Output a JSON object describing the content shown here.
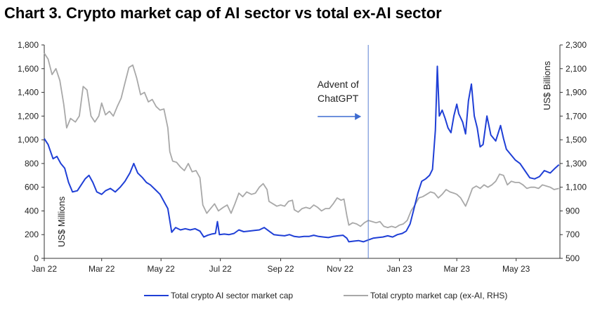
{
  "title": "Chart 3. Crypto market cap of AI sector vs total ex-AI sector",
  "chart_data": {
    "type": "line",
    "left_axis_label": "US$ Millions",
    "right_axis_label": "US$ Billions",
    "left_ylim": [
      0,
      1800
    ],
    "right_ylim": [
      500,
      2300
    ],
    "left_ticks": [
      "0",
      "200",
      "400",
      "600",
      "800",
      "1,000",
      "1,200",
      "1,400",
      "1,600",
      "1,800"
    ],
    "right_ticks": [
      "500",
      "700",
      "900",
      "1,100",
      "1,300",
      "1,500",
      "1,700",
      "1,900",
      "2,100",
      "2,300"
    ],
    "x_ticks": [
      "Jan 22",
      "Mar 22",
      "May 22",
      "Jul 22",
      "Sep 22",
      "Nov 22",
      "Jan 23",
      "Mar 23",
      "May 23"
    ],
    "x_tick_dates": [
      "2022-01-01",
      "2022-03-01",
      "2022-05-01",
      "2022-07-01",
      "2022-09-01",
      "2022-11-01",
      "2023-01-01",
      "2023-03-01",
      "2023-05-01"
    ],
    "x_range": [
      "2022-01-01",
      "2023-06-15"
    ],
    "annotation": {
      "lines": [
        "Advent of",
        "ChatGPT"
      ],
      "date": "2022-11-30"
    },
    "series": [
      {
        "name": "Total crypto AI sector market cap",
        "axis": "left",
        "color": "#1f3fd6",
        "points": [
          [
            "2022-01-01",
            1010
          ],
          [
            "2022-01-05",
            960
          ],
          [
            "2022-01-10",
            840
          ],
          [
            "2022-01-14",
            860
          ],
          [
            "2022-01-18",
            800
          ],
          [
            "2022-01-22",
            760
          ],
          [
            "2022-01-26",
            640
          ],
          [
            "2022-01-30",
            560
          ],
          [
            "2022-02-04",
            570
          ],
          [
            "2022-02-08",
            620
          ],
          [
            "2022-02-12",
            670
          ],
          [
            "2022-02-16",
            700
          ],
          [
            "2022-02-20",
            640
          ],
          [
            "2022-02-24",
            560
          ],
          [
            "2022-03-01",
            540
          ],
          [
            "2022-03-05",
            570
          ],
          [
            "2022-03-10",
            590
          ],
          [
            "2022-03-15",
            560
          ],
          [
            "2022-03-20",
            600
          ],
          [
            "2022-03-25",
            650
          ],
          [
            "2022-03-30",
            720
          ],
          [
            "2022-04-03",
            800
          ],
          [
            "2022-04-07",
            720
          ],
          [
            "2022-04-12",
            680
          ],
          [
            "2022-04-16",
            640
          ],
          [
            "2022-04-20",
            620
          ],
          [
            "2022-04-25",
            580
          ],
          [
            "2022-04-30",
            540
          ],
          [
            "2022-05-04",
            480
          ],
          [
            "2022-05-08",
            420
          ],
          [
            "2022-05-12",
            220
          ],
          [
            "2022-05-16",
            260
          ],
          [
            "2022-05-21",
            240
          ],
          [
            "2022-05-26",
            250
          ],
          [
            "2022-05-31",
            240
          ],
          [
            "2022-06-05",
            250
          ],
          [
            "2022-06-10",
            230
          ],
          [
            "2022-06-14",
            180
          ],
          [
            "2022-06-18",
            195
          ],
          [
            "2022-06-22",
            205
          ],
          [
            "2022-06-26",
            210
          ],
          [
            "2022-06-28",
            310
          ],
          [
            "2022-06-30",
            200
          ],
          [
            "2022-07-05",
            205
          ],
          [
            "2022-07-10",
            200
          ],
          [
            "2022-07-15",
            210
          ],
          [
            "2022-07-20",
            240
          ],
          [
            "2022-07-25",
            225
          ],
          [
            "2022-07-30",
            230
          ],
          [
            "2022-08-05",
            235
          ],
          [
            "2022-08-10",
            240
          ],
          [
            "2022-08-15",
            260
          ],
          [
            "2022-08-20",
            230
          ],
          [
            "2022-08-25",
            200
          ],
          [
            "2022-08-30",
            195
          ],
          [
            "2022-09-05",
            190
          ],
          [
            "2022-09-10",
            200
          ],
          [
            "2022-09-15",
            185
          ],
          [
            "2022-09-20",
            180
          ],
          [
            "2022-09-25",
            185
          ],
          [
            "2022-09-30",
            185
          ],
          [
            "2022-10-05",
            195
          ],
          [
            "2022-10-10",
            185
          ],
          [
            "2022-10-15",
            180
          ],
          [
            "2022-10-20",
            175
          ],
          [
            "2022-10-25",
            185
          ],
          [
            "2022-10-30",
            190
          ],
          [
            "2022-11-04",
            195
          ],
          [
            "2022-11-08",
            170
          ],
          [
            "2022-11-10",
            140
          ],
          [
            "2022-11-15",
            145
          ],
          [
            "2022-11-20",
            150
          ],
          [
            "2022-11-25",
            140
          ],
          [
            "2022-11-30",
            155
          ],
          [
            "2022-12-05",
            170
          ],
          [
            "2022-12-10",
            175
          ],
          [
            "2022-12-15",
            180
          ],
          [
            "2022-12-20",
            190
          ],
          [
            "2022-12-25",
            180
          ],
          [
            "2022-12-30",
            200
          ],
          [
            "2023-01-04",
            210
          ],
          [
            "2023-01-08",
            230
          ],
          [
            "2023-01-12",
            290
          ],
          [
            "2023-01-16",
            420
          ],
          [
            "2023-01-20",
            550
          ],
          [
            "2023-01-24",
            650
          ],
          [
            "2023-01-28",
            670
          ],
          [
            "2023-02-01",
            700
          ],
          [
            "2023-02-04",
            750
          ],
          [
            "2023-02-07",
            1080
          ],
          [
            "2023-02-09",
            1620
          ],
          [
            "2023-02-11",
            1200
          ],
          [
            "2023-02-14",
            1250
          ],
          [
            "2023-02-17",
            1180
          ],
          [
            "2023-02-20",
            1100
          ],
          [
            "2023-02-23",
            1060
          ],
          [
            "2023-02-26",
            1200
          ],
          [
            "2023-03-01",
            1300
          ],
          [
            "2023-03-03",
            1220
          ],
          [
            "2023-03-07",
            1150
          ],
          [
            "2023-03-10",
            1050
          ],
          [
            "2023-03-13",
            1330
          ],
          [
            "2023-03-16",
            1470
          ],
          [
            "2023-03-19",
            1200
          ],
          [
            "2023-03-22",
            1100
          ],
          [
            "2023-03-25",
            940
          ],
          [
            "2023-03-28",
            960
          ],
          [
            "2023-04-01",
            1200
          ],
          [
            "2023-04-05",
            1040
          ],
          [
            "2023-04-10",
            990
          ],
          [
            "2023-04-15",
            1120
          ],
          [
            "2023-04-18",
            1010
          ],
          [
            "2023-04-21",
            920
          ],
          [
            "2023-04-25",
            880
          ],
          [
            "2023-04-30",
            830
          ],
          [
            "2023-05-05",
            800
          ],
          [
            "2023-05-10",
            740
          ],
          [
            "2023-05-15",
            680
          ],
          [
            "2023-05-20",
            670
          ],
          [
            "2023-05-25",
            690
          ],
          [
            "2023-05-30",
            740
          ],
          [
            "2023-06-05",
            720
          ],
          [
            "2023-06-10",
            760
          ],
          [
            "2023-06-14",
            790
          ]
        ]
      },
      {
        "name": "Total crypto market cap (ex-AI, RHS)",
        "axis": "right",
        "color": "#a8a8a8",
        "points": [
          [
            "2022-01-01",
            2230
          ],
          [
            "2022-01-05",
            2180
          ],
          [
            "2022-01-09",
            2050
          ],
          [
            "2022-01-13",
            2100
          ],
          [
            "2022-01-17",
            2000
          ],
          [
            "2022-01-21",
            1800
          ],
          [
            "2022-01-24",
            1600
          ],
          [
            "2022-01-28",
            1680
          ],
          [
            "2022-02-02",
            1650
          ],
          [
            "2022-02-06",
            1700
          ],
          [
            "2022-02-10",
            1950
          ],
          [
            "2022-02-14",
            1920
          ],
          [
            "2022-02-18",
            1700
          ],
          [
            "2022-02-22",
            1650
          ],
          [
            "2022-02-26",
            1700
          ],
          [
            "2022-03-01",
            1810
          ],
          [
            "2022-03-05",
            1710
          ],
          [
            "2022-03-09",
            1740
          ],
          [
            "2022-03-13",
            1700
          ],
          [
            "2022-03-17",
            1780
          ],
          [
            "2022-03-21",
            1850
          ],
          [
            "2022-03-25",
            1980
          ],
          [
            "2022-03-29",
            2110
          ],
          [
            "2022-04-02",
            2130
          ],
          [
            "2022-04-06",
            2020
          ],
          [
            "2022-04-10",
            1880
          ],
          [
            "2022-04-14",
            1900
          ],
          [
            "2022-04-18",
            1820
          ],
          [
            "2022-04-22",
            1840
          ],
          [
            "2022-04-26",
            1780
          ],
          [
            "2022-04-30",
            1750
          ],
          [
            "2022-05-04",
            1760
          ],
          [
            "2022-05-08",
            1600
          ],
          [
            "2022-05-10",
            1400
          ],
          [
            "2022-05-13",
            1320
          ],
          [
            "2022-05-17",
            1310
          ],
          [
            "2022-05-21",
            1270
          ],
          [
            "2022-05-25",
            1240
          ],
          [
            "2022-05-29",
            1300
          ],
          [
            "2022-06-02",
            1230
          ],
          [
            "2022-06-06",
            1240
          ],
          [
            "2022-06-10",
            1180
          ],
          [
            "2022-06-13",
            950
          ],
          [
            "2022-06-17",
            880
          ],
          [
            "2022-06-21",
            920
          ],
          [
            "2022-06-25",
            960
          ],
          [
            "2022-06-29",
            900
          ],
          [
            "2022-07-04",
            930
          ],
          [
            "2022-07-08",
            950
          ],
          [
            "2022-07-12",
            880
          ],
          [
            "2022-07-16",
            960
          ],
          [
            "2022-07-20",
            1050
          ],
          [
            "2022-07-24",
            1020
          ],
          [
            "2022-07-28",
            1060
          ],
          [
            "2022-08-02",
            1040
          ],
          [
            "2022-08-06",
            1050
          ],
          [
            "2022-08-10",
            1100
          ],
          [
            "2022-08-14",
            1130
          ],
          [
            "2022-08-18",
            1080
          ],
          [
            "2022-08-20",
            980
          ],
          [
            "2022-08-24",
            960
          ],
          [
            "2022-08-28",
            940
          ],
          [
            "2022-09-01",
            950
          ],
          [
            "2022-09-05",
            940
          ],
          [
            "2022-09-09",
            980
          ],
          [
            "2022-09-13",
            990
          ],
          [
            "2022-09-15",
            910
          ],
          [
            "2022-09-19",
            890
          ],
          [
            "2022-09-23",
            920
          ],
          [
            "2022-09-27",
            930
          ],
          [
            "2022-10-01",
            920
          ],
          [
            "2022-10-05",
            950
          ],
          [
            "2022-10-09",
            930
          ],
          [
            "2022-10-13",
            900
          ],
          [
            "2022-10-17",
            920
          ],
          [
            "2022-10-21",
            920
          ],
          [
            "2022-10-25",
            960
          ],
          [
            "2022-10-29",
            1010
          ],
          [
            "2022-11-02",
            990
          ],
          [
            "2022-11-05",
            1000
          ],
          [
            "2022-11-08",
            860
          ],
          [
            "2022-11-10",
            780
          ],
          [
            "2022-11-14",
            800
          ],
          [
            "2022-11-18",
            790
          ],
          [
            "2022-11-22",
            770
          ],
          [
            "2022-11-26",
            800
          ],
          [
            "2022-11-30",
            820
          ],
          [
            "2022-12-04",
            810
          ],
          [
            "2022-12-08",
            800
          ],
          [
            "2022-12-12",
            810
          ],
          [
            "2022-12-16",
            770
          ],
          [
            "2022-12-20",
            760
          ],
          [
            "2022-12-24",
            770
          ],
          [
            "2022-12-28",
            760
          ],
          [
            "2023-01-01",
            780
          ],
          [
            "2023-01-05",
            790
          ],
          [
            "2023-01-09",
            820
          ],
          [
            "2023-01-13",
            900
          ],
          [
            "2023-01-17",
            950
          ],
          [
            "2023-01-21",
            1010
          ],
          [
            "2023-01-25",
            1020
          ],
          [
            "2023-01-29",
            1040
          ],
          [
            "2023-02-02",
            1060
          ],
          [
            "2023-02-06",
            1050
          ],
          [
            "2023-02-10",
            1010
          ],
          [
            "2023-02-14",
            1040
          ],
          [
            "2023-02-18",
            1080
          ],
          [
            "2023-02-22",
            1060
          ],
          [
            "2023-02-26",
            1050
          ],
          [
            "2023-03-01",
            1040
          ],
          [
            "2023-03-05",
            1010
          ],
          [
            "2023-03-10",
            940
          ],
          [
            "2023-03-13",
            1000
          ],
          [
            "2023-03-17",
            1090
          ],
          [
            "2023-03-21",
            1110
          ],
          [
            "2023-03-25",
            1090
          ],
          [
            "2023-03-29",
            1120
          ],
          [
            "2023-04-02",
            1100
          ],
          [
            "2023-04-06",
            1120
          ],
          [
            "2023-04-10",
            1150
          ],
          [
            "2023-04-14",
            1210
          ],
          [
            "2023-04-18",
            1200
          ],
          [
            "2023-04-22",
            1120
          ],
          [
            "2023-04-26",
            1150
          ],
          [
            "2023-04-30",
            1140
          ],
          [
            "2023-05-04",
            1140
          ],
          [
            "2023-05-08",
            1120
          ],
          [
            "2023-05-12",
            1090
          ],
          [
            "2023-05-16",
            1100
          ],
          [
            "2023-05-20",
            1100
          ],
          [
            "2023-05-24",
            1090
          ],
          [
            "2023-05-28",
            1120
          ],
          [
            "2023-06-01",
            1110
          ],
          [
            "2023-06-05",
            1100
          ],
          [
            "2023-06-09",
            1080
          ],
          [
            "2023-06-14",
            1090
          ]
        ]
      }
    ]
  }
}
